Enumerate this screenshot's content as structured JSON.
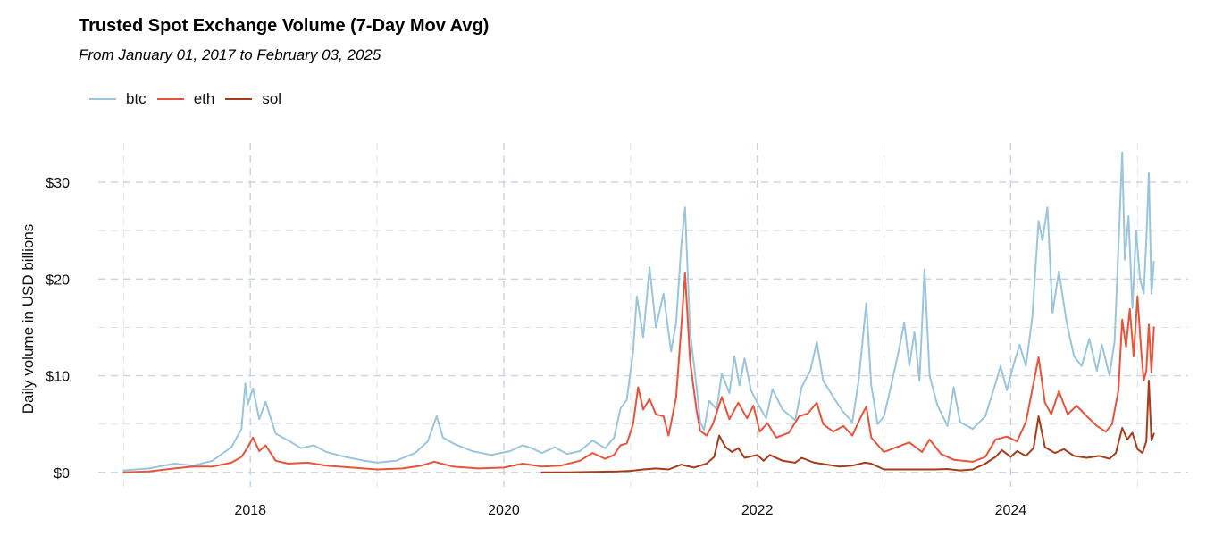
{
  "chart_data": {
    "type": "line",
    "title": "Trusted Spot Exchange Volume (7-Day Mov Avg)",
    "subtitle": "From January 01, 2017 to February 03, 2025",
    "xlabel": "",
    "ylabel": "Daily volume in USD billions",
    "xlim": [
      2016.8,
      2025.4
    ],
    "ylim": [
      -1.5,
      35
    ],
    "x_ticks": [
      2018,
      2020,
      2022,
      2024
    ],
    "x_tick_labels": [
      "2018",
      "2020",
      "2022",
      "2024"
    ],
    "y_ticks": [
      0,
      10,
      20,
      30
    ],
    "y_tick_labels": [
      "$0",
      "$10",
      "$20",
      "$30"
    ],
    "grid": true,
    "legend_position": "top-left",
    "series": [
      {
        "name": "btc",
        "color": "#9ac5dc",
        "points": [
          [
            2017.0,
            0.2
          ],
          [
            2017.2,
            0.4
          ],
          [
            2017.4,
            0.9
          ],
          [
            2017.55,
            0.7
          ],
          [
            2017.7,
            1.2
          ],
          [
            2017.85,
            2.6
          ],
          [
            2017.93,
            4.5
          ],
          [
            2017.96,
            9.2
          ],
          [
            2017.98,
            7.0
          ],
          [
            2018.02,
            8.7
          ],
          [
            2018.07,
            5.5
          ],
          [
            2018.12,
            7.3
          ],
          [
            2018.2,
            4.0
          ],
          [
            2018.3,
            3.3
          ],
          [
            2018.4,
            2.5
          ],
          [
            2018.5,
            2.8
          ],
          [
            2018.6,
            2.1
          ],
          [
            2018.75,
            1.6
          ],
          [
            2018.9,
            1.2
          ],
          [
            2019.0,
            1.0
          ],
          [
            2019.15,
            1.2
          ],
          [
            2019.3,
            2.0
          ],
          [
            2019.4,
            3.2
          ],
          [
            2019.47,
            5.8
          ],
          [
            2019.52,
            3.6
          ],
          [
            2019.6,
            3.0
          ],
          [
            2019.75,
            2.2
          ],
          [
            2019.9,
            1.8
          ],
          [
            2020.05,
            2.2
          ],
          [
            2020.15,
            2.8
          ],
          [
            2020.22,
            2.5
          ],
          [
            2020.3,
            2.0
          ],
          [
            2020.4,
            2.6
          ],
          [
            2020.5,
            1.9
          ],
          [
            2020.6,
            2.2
          ],
          [
            2020.7,
            3.3
          ],
          [
            2020.8,
            2.5
          ],
          [
            2020.87,
            3.6
          ],
          [
            2020.92,
            6.6
          ],
          [
            2020.97,
            7.5
          ],
          [
            2021.02,
            12.5
          ],
          [
            2021.05,
            18.2
          ],
          [
            2021.1,
            14.0
          ],
          [
            2021.15,
            21.2
          ],
          [
            2021.2,
            15.0
          ],
          [
            2021.26,
            18.5
          ],
          [
            2021.32,
            12.5
          ],
          [
            2021.36,
            15.5
          ],
          [
            2021.4,
            23.5
          ],
          [
            2021.43,
            27.4
          ],
          [
            2021.47,
            14.5
          ],
          [
            2021.52,
            9.0
          ],
          [
            2021.55,
            5.2
          ],
          [
            2021.58,
            4.4
          ],
          [
            2021.62,
            7.4
          ],
          [
            2021.68,
            6.5
          ],
          [
            2021.72,
            10.2
          ],
          [
            2021.78,
            8.2
          ],
          [
            2021.82,
            12.0
          ],
          [
            2021.86,
            9.0
          ],
          [
            2021.9,
            11.8
          ],
          [
            2021.95,
            8.5
          ],
          [
            2022.0,
            7.2
          ],
          [
            2022.07,
            5.6
          ],
          [
            2022.12,
            8.6
          ],
          [
            2022.2,
            6.5
          ],
          [
            2022.3,
            5.4
          ],
          [
            2022.35,
            8.8
          ],
          [
            2022.42,
            10.6
          ],
          [
            2022.47,
            13.5
          ],
          [
            2022.52,
            9.5
          ],
          [
            2022.6,
            7.8
          ],
          [
            2022.67,
            6.4
          ],
          [
            2022.75,
            5.2
          ],
          [
            2022.8,
            9.5
          ],
          [
            2022.86,
            17.5
          ],
          [
            2022.9,
            9.0
          ],
          [
            2022.95,
            5.0
          ],
          [
            2023.0,
            5.8
          ],
          [
            2023.05,
            8.6
          ],
          [
            2023.12,
            12.8
          ],
          [
            2023.16,
            15.5
          ],
          [
            2023.2,
            11.0
          ],
          [
            2023.24,
            14.5
          ],
          [
            2023.28,
            9.5
          ],
          [
            2023.32,
            21.0
          ],
          [
            2023.36,
            10.0
          ],
          [
            2023.42,
            7.0
          ],
          [
            2023.5,
            4.8
          ],
          [
            2023.55,
            8.8
          ],
          [
            2023.6,
            5.2
          ],
          [
            2023.7,
            4.5
          ],
          [
            2023.8,
            5.8
          ],
          [
            2023.88,
            9.2
          ],
          [
            2023.92,
            11.0
          ],
          [
            2023.97,
            8.5
          ],
          [
            2024.02,
            11.0
          ],
          [
            2024.07,
            13.2
          ],
          [
            2024.12,
            11.0
          ],
          [
            2024.17,
            16.0
          ],
          [
            2024.22,
            26.0
          ],
          [
            2024.25,
            24.0
          ],
          [
            2024.29,
            27.4
          ],
          [
            2024.33,
            16.5
          ],
          [
            2024.38,
            20.8
          ],
          [
            2024.44,
            15.6
          ],
          [
            2024.5,
            12.0
          ],
          [
            2024.56,
            11.0
          ],
          [
            2024.62,
            13.8
          ],
          [
            2024.68,
            10.5
          ],
          [
            2024.72,
            13.2
          ],
          [
            2024.78,
            10.0
          ],
          [
            2024.82,
            13.6
          ],
          [
            2024.86,
            26.5
          ],
          [
            2024.88,
            33.1
          ],
          [
            2024.9,
            22.0
          ],
          [
            2024.93,
            26.5
          ],
          [
            2024.96,
            17.0
          ],
          [
            2024.99,
            25.0
          ],
          [
            2025.02,
            20.0
          ],
          [
            2025.05,
            18.5
          ],
          [
            2025.07,
            24.0
          ],
          [
            2025.09,
            31.0
          ],
          [
            2025.11,
            18.5
          ],
          [
            2025.13,
            21.8
          ]
        ]
      },
      {
        "name": "eth",
        "color": "#e9533a",
        "points": [
          [
            2017.0,
            0.0
          ],
          [
            2017.2,
            0.1
          ],
          [
            2017.4,
            0.4
          ],
          [
            2017.55,
            0.6
          ],
          [
            2017.7,
            0.6
          ],
          [
            2017.85,
            1.0
          ],
          [
            2017.93,
            1.6
          ],
          [
            2017.98,
            2.6
          ],
          [
            2018.02,
            3.6
          ],
          [
            2018.07,
            2.2
          ],
          [
            2018.12,
            2.8
          ],
          [
            2018.2,
            1.2
          ],
          [
            2018.3,
            0.9
          ],
          [
            2018.45,
            1.0
          ],
          [
            2018.6,
            0.7
          ],
          [
            2018.8,
            0.5
          ],
          [
            2019.0,
            0.3
          ],
          [
            2019.2,
            0.4
          ],
          [
            2019.35,
            0.7
          ],
          [
            2019.45,
            1.1
          ],
          [
            2019.6,
            0.6
          ],
          [
            2019.8,
            0.4
          ],
          [
            2020.0,
            0.5
          ],
          [
            2020.15,
            0.9
          ],
          [
            2020.3,
            0.6
          ],
          [
            2020.45,
            0.7
          ],
          [
            2020.6,
            1.2
          ],
          [
            2020.7,
            2.0
          ],
          [
            2020.8,
            1.4
          ],
          [
            2020.87,
            1.8
          ],
          [
            2020.92,
            2.8
          ],
          [
            2020.97,
            3.0
          ],
          [
            2021.02,
            5.0
          ],
          [
            2021.06,
            8.8
          ],
          [
            2021.1,
            6.5
          ],
          [
            2021.15,
            7.6
          ],
          [
            2021.2,
            6.0
          ],
          [
            2021.26,
            5.8
          ],
          [
            2021.3,
            3.8
          ],
          [
            2021.36,
            7.8
          ],
          [
            2021.4,
            15.0
          ],
          [
            2021.43,
            20.6
          ],
          [
            2021.47,
            11.5
          ],
          [
            2021.52,
            6.5
          ],
          [
            2021.55,
            4.3
          ],
          [
            2021.6,
            3.8
          ],
          [
            2021.65,
            5.0
          ],
          [
            2021.72,
            7.8
          ],
          [
            2021.78,
            5.5
          ],
          [
            2021.85,
            7.2
          ],
          [
            2021.92,
            5.6
          ],
          [
            2021.97,
            6.9
          ],
          [
            2022.02,
            4.2
          ],
          [
            2022.08,
            5.1
          ],
          [
            2022.15,
            3.6
          ],
          [
            2022.25,
            4.1
          ],
          [
            2022.33,
            5.8
          ],
          [
            2022.4,
            6.1
          ],
          [
            2022.47,
            7.2
          ],
          [
            2022.52,
            5.0
          ],
          [
            2022.6,
            4.2
          ],
          [
            2022.68,
            4.8
          ],
          [
            2022.75,
            3.8
          ],
          [
            2022.82,
            5.8
          ],
          [
            2022.86,
            6.8
          ],
          [
            2022.9,
            3.6
          ],
          [
            2023.0,
            2.1
          ],
          [
            2023.1,
            2.6
          ],
          [
            2023.2,
            3.1
          ],
          [
            2023.3,
            2.1
          ],
          [
            2023.36,
            3.4
          ],
          [
            2023.45,
            1.9
          ],
          [
            2023.55,
            1.3
          ],
          [
            2023.7,
            1.1
          ],
          [
            2023.8,
            1.6
          ],
          [
            2023.88,
            3.4
          ],
          [
            2023.97,
            3.7
          ],
          [
            2024.05,
            3.2
          ],
          [
            2024.12,
            5.2
          ],
          [
            2024.18,
            9.2
          ],
          [
            2024.22,
            11.9
          ],
          [
            2024.27,
            7.2
          ],
          [
            2024.32,
            6.0
          ],
          [
            2024.38,
            8.4
          ],
          [
            2024.45,
            6.0
          ],
          [
            2024.52,
            6.9
          ],
          [
            2024.6,
            5.8
          ],
          [
            2024.68,
            4.8
          ],
          [
            2024.75,
            4.2
          ],
          [
            2024.8,
            5.0
          ],
          [
            2024.85,
            8.5
          ],
          [
            2024.88,
            15.8
          ],
          [
            2024.91,
            13.0
          ],
          [
            2024.94,
            16.9
          ],
          [
            2024.97,
            12.0
          ],
          [
            2025.0,
            18.2
          ],
          [
            2025.03,
            12.5
          ],
          [
            2025.05,
            9.5
          ],
          [
            2025.07,
            10.5
          ],
          [
            2025.09,
            15.3
          ],
          [
            2025.11,
            10.3
          ],
          [
            2025.13,
            15.0
          ]
        ]
      },
      {
        "name": "sol",
        "color": "#a63c1a",
        "points": [
          [
            2020.3,
            0.0
          ],
          [
            2020.5,
            0.0
          ],
          [
            2020.7,
            0.05
          ],
          [
            2020.9,
            0.1
          ],
          [
            2021.0,
            0.15
          ],
          [
            2021.1,
            0.3
          ],
          [
            2021.2,
            0.4
          ],
          [
            2021.3,
            0.3
          ],
          [
            2021.4,
            0.8
          ],
          [
            2021.5,
            0.5
          ],
          [
            2021.6,
            0.9
          ],
          [
            2021.66,
            1.6
          ],
          [
            2021.7,
            3.8
          ],
          [
            2021.75,
            2.6
          ],
          [
            2021.8,
            2.1
          ],
          [
            2021.85,
            2.5
          ],
          [
            2021.9,
            1.5
          ],
          [
            2022.0,
            1.8
          ],
          [
            2022.05,
            1.2
          ],
          [
            2022.1,
            1.8
          ],
          [
            2022.2,
            1.2
          ],
          [
            2022.3,
            1.0
          ],
          [
            2022.35,
            1.5
          ],
          [
            2022.45,
            1.0
          ],
          [
            2022.55,
            0.8
          ],
          [
            2022.65,
            0.6
          ],
          [
            2022.75,
            0.7
          ],
          [
            2022.85,
            1.0
          ],
          [
            2022.9,
            0.9
          ],
          [
            2023.0,
            0.3
          ],
          [
            2023.1,
            0.3
          ],
          [
            2023.2,
            0.3
          ],
          [
            2023.3,
            0.3
          ],
          [
            2023.4,
            0.3
          ],
          [
            2023.5,
            0.35
          ],
          [
            2023.6,
            0.2
          ],
          [
            2023.7,
            0.3
          ],
          [
            2023.8,
            0.9
          ],
          [
            2023.88,
            1.6
          ],
          [
            2023.93,
            2.3
          ],
          [
            2024.0,
            1.6
          ],
          [
            2024.05,
            2.2
          ],
          [
            2024.12,
            1.7
          ],
          [
            2024.18,
            2.5
          ],
          [
            2024.22,
            5.8
          ],
          [
            2024.27,
            2.6
          ],
          [
            2024.35,
            2.0
          ],
          [
            2024.42,
            2.4
          ],
          [
            2024.5,
            1.7
          ],
          [
            2024.6,
            1.5
          ],
          [
            2024.7,
            1.7
          ],
          [
            2024.78,
            1.4
          ],
          [
            2024.83,
            2.0
          ],
          [
            2024.88,
            4.6
          ],
          [
            2024.92,
            3.4
          ],
          [
            2024.96,
            4.1
          ],
          [
            2025.0,
            2.4
          ],
          [
            2025.04,
            2.0
          ],
          [
            2025.07,
            3.2
          ],
          [
            2025.09,
            9.5
          ],
          [
            2025.11,
            3.3
          ],
          [
            2025.13,
            4.0
          ]
        ]
      }
    ]
  }
}
